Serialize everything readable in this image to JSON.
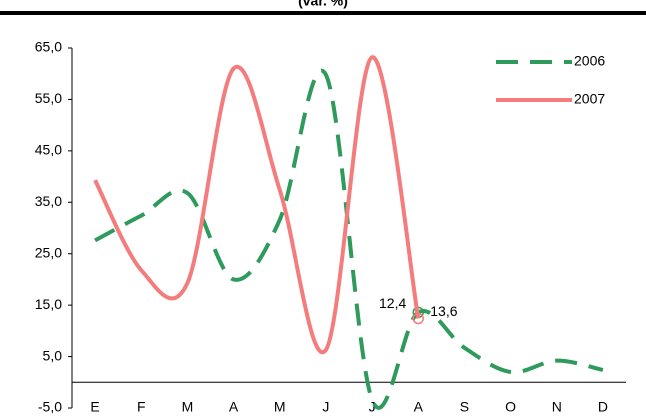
{
  "chart_data": {
    "type": "line",
    "title": "(var. %)",
    "categories": [
      "E",
      "F",
      "M",
      "A",
      "M",
      "J",
      "J",
      "A",
      "S",
      "O",
      "N",
      "D"
    ],
    "series": [
      {
        "name": "2006",
        "color": "#2e9a5c",
        "dashed": true,
        "values": [
          27.6,
          32.4,
          36.8,
          20.0,
          31.6,
          59.8,
          -3.4,
          13.6,
          6.7,
          2.0,
          4.2,
          2.4
        ],
        "value_labels": [
          null,
          null,
          null,
          null,
          null,
          null,
          null,
          "13,6",
          null,
          null,
          null,
          null
        ]
      },
      {
        "name": "2007",
        "color": "#f47c7c",
        "dashed": false,
        "values": [
          39.3,
          21.8,
          19.3,
          61.0,
          37.4,
          6.3,
          63.2,
          12.4,
          null,
          null,
          null,
          null
        ],
        "value_labels": [
          null,
          null,
          null,
          null,
          null,
          null,
          null,
          "12,4",
          null,
          null,
          null,
          null
        ]
      }
    ],
    "ylim": [
      -5,
      65
    ],
    "yticks": [
      {
        "value": -5,
        "label": "-5,0"
      },
      {
        "value": 5,
        "label": "5,0"
      },
      {
        "value": 15,
        "label": "15,0"
      },
      {
        "value": 25,
        "label": "25,0"
      },
      {
        "value": 35,
        "label": "35,0"
      },
      {
        "value": 45,
        "label": "45,0"
      },
      {
        "value": 55,
        "label": "55,0"
      },
      {
        "value": 65,
        "label": "65,0"
      }
    ],
    "grid": false,
    "legend": "top-right"
  }
}
